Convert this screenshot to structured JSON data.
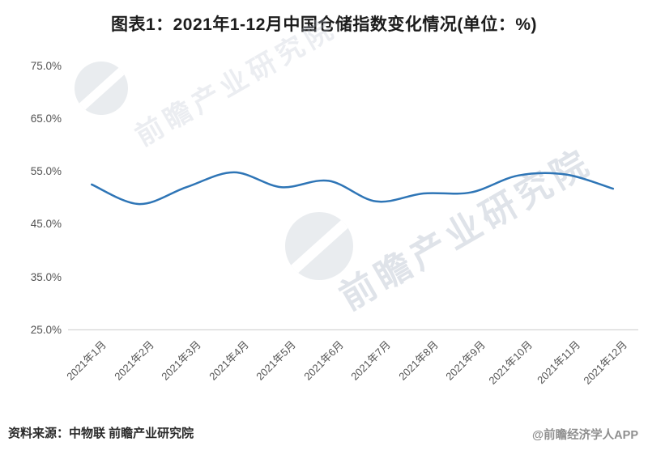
{
  "title": "图表1：2021年1-12月中国仓储指数变化情况(单位：%)",
  "chart_data": {
    "type": "line",
    "title": "图表1：2021年1-12月中国仓储指数变化情况(单位：%)",
    "categories": [
      "2021年1月",
      "2021年2月",
      "2021年3月",
      "2021年4月",
      "2021年5月",
      "2021年6月",
      "2021年7月",
      "2021年8月",
      "2021年9月",
      "2021年10月",
      "2021年11月",
      "2021年12月"
    ],
    "series": [
      {
        "name": "仓储指数",
        "values": [
          52.5,
          48.8,
          52.0,
          54.8,
          52.0,
          53.2,
          49.3,
          50.8,
          51.0,
          54.2,
          54.4,
          51.7
        ]
      }
    ],
    "unit": "%",
    "ylim": [
      25,
      75
    ],
    "y_tick_labels": [
      "75.0%",
      "65.0%",
      "55.0%",
      "45.0%",
      "35.0%",
      "25.0%"
    ],
    "y_tick_values": [
      75,
      65,
      55,
      45,
      35,
      25
    ],
    "grid": false,
    "legend": "none",
    "line_color": "#2e75b6",
    "axis_line_color": "#d6d6d6"
  },
  "watermark": {
    "text": "前瞻产业研究院"
  },
  "footer": {
    "source": "资料来源：中物联 前瞻产业研究院",
    "credit": "@前瞻经济学人APP"
  }
}
